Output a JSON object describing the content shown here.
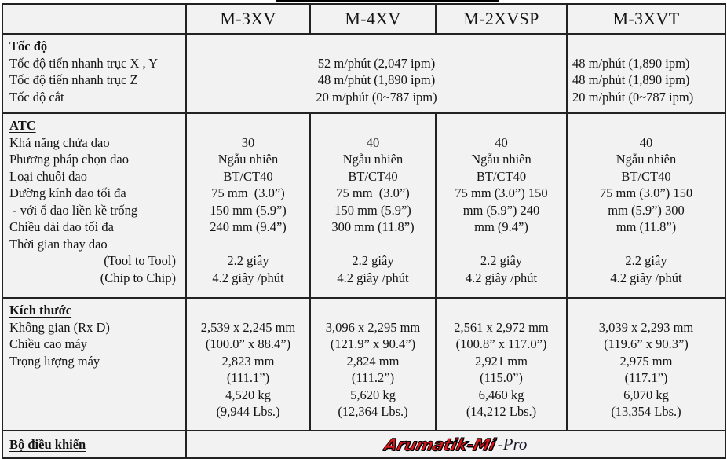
{
  "header": {
    "corner": "",
    "models": [
      "M-3XV",
      "M-4XV",
      "M-2XVSP",
      "M-3XVT"
    ]
  },
  "sections": {
    "speed": {
      "title": "Tốc độ",
      "labels": [
        "Tốc độ tiến nhanh trục X , Y",
        "Tốc độ tiến nhanh trục Z",
        "Tốc độ cắt"
      ],
      "shared_values": [
        "52 m/phút (2,047 ipm)",
        "48 m/phút (1,890 ipm)",
        "20 m/phút (0~787 ipm)"
      ],
      "m3xvt_values": [
        "48  m/phút  (1,890  ipm)",
        "48  m/phút  (1,890  ipm)",
        "20 m/phút (0~787 ipm)"
      ]
    },
    "atc": {
      "title": "ATC",
      "labels": [
        "Khả năng chứa dao",
        "Phương pháp chọn dao",
        "Loại chuôi dao",
        "Đường kính dao tối đa",
        " - với ổ dao liền kề trống",
        "Chiều dài dao tối đa",
        "Thời gian thay dao",
        "(Tool to Tool)",
        "(Chip to Chip)"
      ],
      "columns": [
        [
          "30",
          "Ngẫu nhiên",
          "BT/CT40",
          "75 mm  (3.0”)",
          "150 mm (5.9”)",
          "240 mm (9.4”)",
          "",
          "2.2 giây",
          "4.2 giây /phút"
        ],
        [
          "40",
          "Ngẫu nhiên",
          "BT/CT40",
          "75 mm  (3.0”)",
          "150 mm (5.9”)",
          "300 mm (11.8”)",
          "",
          "2.2 giây",
          "4.2 giây /phút"
        ],
        [
          "40",
          "Ngẫu nhiên",
          "BT/CT40",
          "75 mm (3.0”) 150",
          "mm (5.9”) 240",
          "mm (9.4”)",
          "",
          "2.2 giây",
          "4.2 giây /phút"
        ],
        [
          "40",
          "Ngẫu nhiên",
          "BT/CT40",
          "75 mm (3.0”) 150",
          "mm (5.9”) 300",
          "mm (11.8”)",
          "",
          "2.2 giây",
          "4.2 giây /phút"
        ]
      ]
    },
    "dimensions": {
      "title": "Kích thước",
      "labels": [
        "Không gian (Rx D)",
        "",
        "Chiều cao máy",
        "",
        "Trọng lượng máy",
        ""
      ],
      "columns": [
        [
          "2,539 x 2,245 mm",
          "(100.0” x 88.4”)",
          "2,823 mm",
          "(111.1”)",
          "4,520 kg",
          "(9,944 Lbs.)"
        ],
        [
          "3,096 x 2,295 mm",
          "(121.9” x 90.4”)",
          "2,824 mm",
          "(111.2”)",
          "5,620 kg",
          "(12,364 Lbs.)"
        ],
        [
          "2,561 x 2,972 mm",
          "(100.8” x 117.0”)",
          "2,921 mm",
          "(115.0”)",
          "6,460 kg",
          "(14,212 Lbs.)"
        ],
        [
          "3,039 x 2,293 mm",
          "(119.6” x 90.3”)",
          "2,975 mm",
          "(117.1”)",
          "6,070 kg",
          "(13,354 Lbs.)"
        ]
      ]
    },
    "controller": {
      "title": "Bộ điều khiển",
      "logo_brand": "Arumatik-Mi",
      "logo_suffix": "-Pro",
      "logo_color": "#e0151b"
    }
  }
}
